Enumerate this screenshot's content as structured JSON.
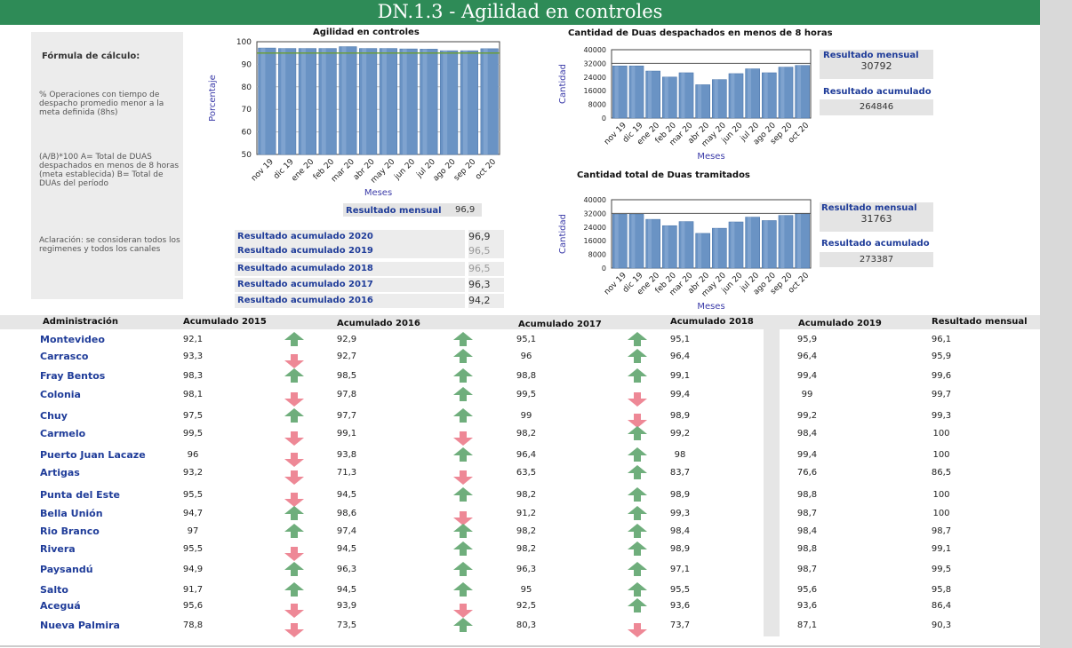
{
  "page_title": "DN.1.3 - Agilidad en controles",
  "formula": {
    "title": "Fórmula de cálculo:",
    "description": "% Operaciones con tiempo de despacho promedio menor a la meta definida (8hs)",
    "definition": "(A/B)*100 A= Total de DUAS despachados en menos de 8 horas (meta establecida) B= Total de DUAs del período",
    "note": "Aclaración: se consideran todos los regimenes y todos los canales"
  },
  "months": [
    "nov 19",
    "dic 19",
    "ene 20",
    "feb 20",
    "mar 20",
    "abr 20",
    "may 20",
    "jun 20",
    "jul 20",
    "ago 20",
    "sep 20",
    "oct 20"
  ],
  "chart_data": [
    {
      "type": "bar",
      "title": "Agilidad en controles",
      "xlabel": "Meses",
      "ylabel": "Porcentaje",
      "ylim": [
        50,
        100
      ],
      "yticks": [
        50,
        60,
        70,
        80,
        90,
        100
      ],
      "categories": [
        "nov 19",
        "dic 19",
        "ene 20",
        "feb 20",
        "mar 20",
        "abr 20",
        "may 20",
        "jun 20",
        "jul 20",
        "ago 20",
        "sep 20",
        "oct 20"
      ],
      "values": [
        97.2,
        97.0,
        97.0,
        97.0,
        97.8,
        97.0,
        97.0,
        96.8,
        96.7,
        96.0,
        96.0,
        96.9
      ],
      "reference_line": 95,
      "colors": {
        "bar": "#6a93c4",
        "line": "#6b9e3a"
      }
    },
    {
      "type": "bar",
      "title": "Cantidad de Duas despachados en menos de 8 horas",
      "xlabel": "Meses",
      "ylabel": "Cantidad",
      "ylim": [
        0,
        40000
      ],
      "yticks": [
        0,
        8000,
        16000,
        24000,
        32000,
        40000
      ],
      "categories": [
        "nov 19",
        "dic 19",
        "ene 20",
        "feb 20",
        "mar 20",
        "abr 20",
        "may 20",
        "jun 20",
        "jul 20",
        "ago 20",
        "sep 20",
        "oct 20"
      ],
      "values": [
        30500,
        30500,
        27500,
        24000,
        26500,
        19500,
        22500,
        26000,
        28800,
        26500,
        29800,
        30792
      ],
      "reference_line": 32000,
      "colors": {
        "bar": "#6a93c4",
        "line": "#555555"
      }
    },
    {
      "type": "bar",
      "title": "Cantidad total de Duas tramitados",
      "xlabel": "Meses",
      "ylabel": "Cantidad",
      "ylim": [
        0,
        40000
      ],
      "yticks": [
        0,
        8000,
        16000,
        24000,
        32000,
        40000
      ],
      "categories": [
        "nov 19",
        "dic 19",
        "ene 20",
        "feb 20",
        "mar 20",
        "abr 20",
        "may 20",
        "jun 20",
        "jul 20",
        "ago 20",
        "sep 20",
        "oct 20"
      ],
      "values": [
        31500,
        31500,
        28500,
        24800,
        27200,
        20300,
        23300,
        27000,
        29800,
        27800,
        30800,
        31763
      ],
      "reference_line": 32000,
      "colors": {
        "bar": "#6a93c4",
        "line": "#555555"
      }
    }
  ],
  "chart1_result": {
    "label": "Resultado mensual",
    "value": "96,9"
  },
  "chart2_results": {
    "monthly_label": "Resultado mensual",
    "monthly_value": "30792",
    "accum_label": "Resultado acumulado",
    "accum_value": "264846"
  },
  "chart3_results": {
    "monthly_label": "Resultado mensual",
    "monthly_value": "31763",
    "accum_label": "Resultado acumulado",
    "accum_value": "273387"
  },
  "accumulated": [
    {
      "label": "Resultado acumulado 2020",
      "value": "96,9"
    },
    {
      "label": "Resultado acumulado 2019",
      "value": "96,5"
    },
    {
      "label": "Resultado acumulado 2018",
      "value": "96,5"
    },
    {
      "label": "Resultado acumulado 2017",
      "value": "96,3"
    },
    {
      "label": "Resultado acumulado 2016",
      "value": "94,2"
    }
  ],
  "table": {
    "headers": [
      "Administración",
      "Acumulado 2015",
      "Acumulado 2016",
      "Acumulado 2017",
      "Acumulado 2018",
      "Acumulado 2019",
      "Resultado mensual"
    ],
    "rows": [
      {
        "name": "Montevideo",
        "a2015": "92,1",
        "t1": "up",
        "a2016": "92,9",
        "t2": "up",
        "a2017": "95,1",
        "t3": "up",
        "a2018": "95,1",
        "a2019": "95,9",
        "mensual": "96,1"
      },
      {
        "name": "Carrasco",
        "a2015": "93,3",
        "t1": "down",
        "a2016": "92,7",
        "t2": "up",
        "a2017": "96",
        "t3": "up",
        "a2018": "96,4",
        "a2019": "96,4",
        "mensual": "95,9"
      },
      {
        "name": "Fray Bentos",
        "a2015": "98,3",
        "t1": "up",
        "a2016": "98,5",
        "t2": "up",
        "a2017": "98,8",
        "t3": "up",
        "a2018": "99,1",
        "a2019": "99,4",
        "mensual": "99,6"
      },
      {
        "name": "Colonia",
        "a2015": "98,1",
        "t1": "down",
        "a2016": "97,8",
        "t2": "up",
        "a2017": "99,5",
        "t3": "down",
        "a2018": "99,4",
        "a2019": "99",
        "mensual": "99,7"
      },
      {
        "name": "Chuy",
        "a2015": "97,5",
        "t1": "up",
        "a2016": "97,7",
        "t2": "up",
        "a2017": "99",
        "t3": "down",
        "a2018": "98,9",
        "a2019": "99,2",
        "mensual": "99,3"
      },
      {
        "name": "Carmelo",
        "a2015": "99,5",
        "t1": "down",
        "a2016": "99,1",
        "t2": "down",
        "a2017": "98,2",
        "t3": "up",
        "a2018": "99,2",
        "a2019": "98,4",
        "mensual": "100"
      },
      {
        "name": "Puerto Juan Lacaze",
        "a2015": "96",
        "t1": "down",
        "a2016": "93,8",
        "t2": "up",
        "a2017": "96,4",
        "t3": "up",
        "a2018": "98",
        "a2019": "99,4",
        "mensual": "100"
      },
      {
        "name": "Artigas",
        "a2015": "93,2",
        "t1": "down",
        "a2016": "71,3",
        "t2": "down",
        "a2017": "63,5",
        "t3": "up",
        "a2018": "83,7",
        "a2019": "76,6",
        "mensual": "86,5"
      },
      {
        "name": "Punta del Este",
        "a2015": "95,5",
        "t1": "down",
        "a2016": "94,5",
        "t2": "up",
        "a2017": "98,2",
        "t3": "up",
        "a2018": "98,9",
        "a2019": "98,8",
        "mensual": "100"
      },
      {
        "name": "Bella Unión",
        "a2015": "94,7",
        "t1": "up",
        "a2016": "98,6",
        "t2": "down",
        "a2017": "91,2",
        "t3": "up",
        "a2018": "99,3",
        "a2019": "98,7",
        "mensual": "100"
      },
      {
        "name": "Rio Branco",
        "a2015": "97",
        "t1": "up",
        "a2016": "97,4",
        "t2": "up",
        "a2017": "98,2",
        "t3": "up",
        "a2018": "98,4",
        "a2019": "98,4",
        "mensual": "98,7"
      },
      {
        "name": "Rivera",
        "a2015": "95,5",
        "t1": "down",
        "a2016": "94,5",
        "t2": "up",
        "a2017": "98,2",
        "t3": "up",
        "a2018": "98,9",
        "a2019": "98,8",
        "mensual": "99,1"
      },
      {
        "name": "Paysandú",
        "a2015": "94,9",
        "t1": "up",
        "a2016": "96,3",
        "t2": "up",
        "a2017": "96,3",
        "t3": "up",
        "a2018": "97,1",
        "a2019": "98,7",
        "mensual": "99,5"
      },
      {
        "name": "Salto",
        "a2015": "91,7",
        "t1": "up",
        "a2016": "94,5",
        "t2": "up",
        "a2017": "95",
        "t3": "up",
        "a2018": "95,5",
        "a2019": "95,6",
        "mensual": "95,8"
      },
      {
        "name": "Aceguá",
        "a2015": "95,6",
        "t1": "down",
        "a2016": "93,9",
        "t2": "down",
        "a2017": "92,5",
        "t3": "up",
        "a2018": "93,6",
        "a2019": "93,6",
        "mensual": "86,4"
      },
      {
        "name": "Nueva Palmira",
        "a2015": "78,8",
        "t1": "down",
        "a2016": "73,5",
        "t2": "up",
        "a2017": "80,3",
        "t3": "down",
        "a2018": "73,7",
        "a2019": "87,1",
        "mensual": "90,3"
      }
    ]
  },
  "colors": {
    "header_bg": "#2e8b57",
    "up_arrow": "#6fae7c",
    "down_arrow": "#ee8896",
    "label_blue": "#1f3c99"
  },
  "icons": {
    "up": "arrow-up-icon",
    "down": "arrow-down-icon"
  }
}
